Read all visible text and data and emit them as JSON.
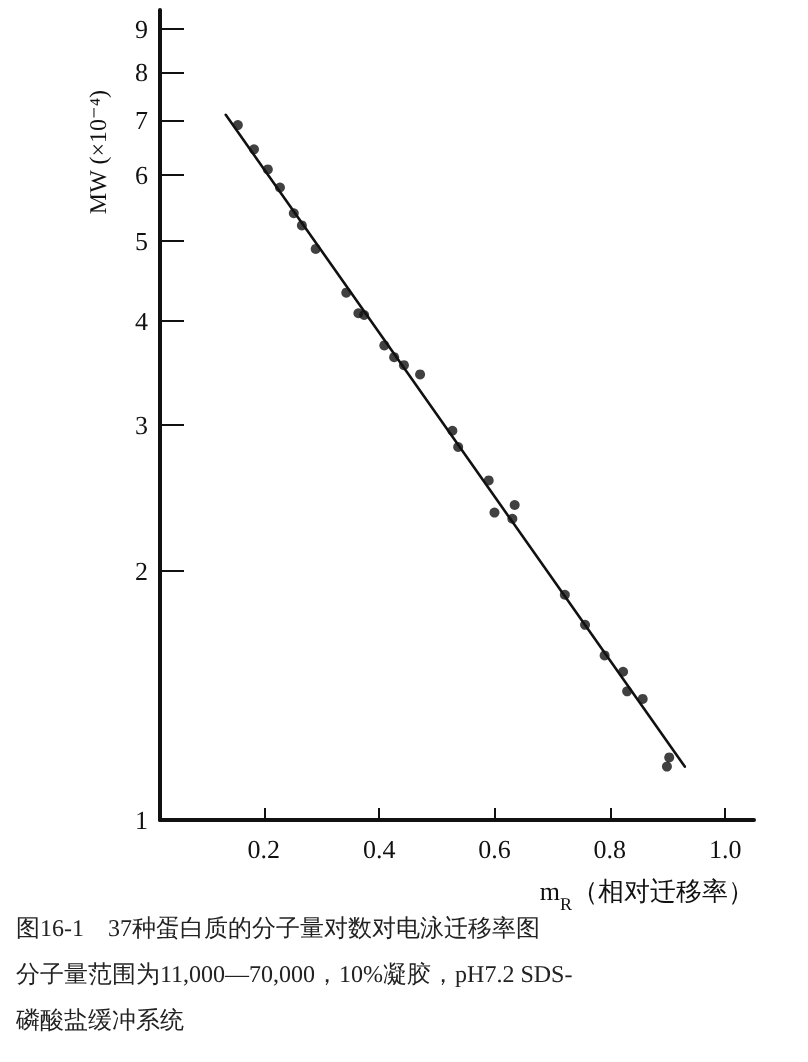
{
  "chart_data": {
    "type": "scatter",
    "xlabel": "m$_{R}$（相对迁移率）",
    "ylabel": "MW (×10⁻⁴)",
    "annotations": [
      "图16-1　37种蛋白质的分子量对数对电泳迁移率图",
      "分子量范围为11,000—70,000，10%凝胶，pH7.2 SDS-",
      "磷酸盐缓冲系统"
    ],
    "series": [
      {
        "color": "#111111",
        "marker": "circle",
        "x": [
          0.155,
          0.183,
          0.207,
          0.228,
          0.252,
          0.266,
          0.29,
          0.343,
          0.364,
          0.374,
          0.409,
          0.426,
          0.443,
          0.471,
          0.527,
          0.537,
          0.59,
          0.6,
          0.635,
          0.631,
          0.722,
          0.757,
          0.791,
          0.823,
          0.83,
          0.857,
          0.903,
          0.899
        ],
        "values": [
          6.9,
          6.45,
          6.1,
          5.8,
          5.4,
          5.22,
          4.89,
          4.33,
          4.09,
          4.07,
          3.74,
          3.62,
          3.54,
          3.45,
          2.95,
          2.82,
          2.57,
          2.35,
          2.4,
          2.31,
          1.87,
          1.72,
          1.58,
          1.51,
          1.43,
          1.4,
          1.19,
          1.16
        ]
      },
      {
        "type": "line",
        "color": "#111111",
        "marker": "none",
        "x": [
          0.134,
          0.93
        ],
        "values": [
          7.1,
          1.16
        ]
      }
    ],
    "xlim": [
      0.02,
      1.05
    ],
    "xticks": [
      0.2,
      0.4,
      0.6,
      0.8,
      {
        "value": 1,
        "label": "1.0"
      }
    ],
    "ylim": [
      1,
      9.5
    ],
    "yticks": [
      1,
      2,
      3,
      4,
      5,
      6,
      7,
      8,
      9
    ],
    "log": "y",
    "grid": false
  }
}
